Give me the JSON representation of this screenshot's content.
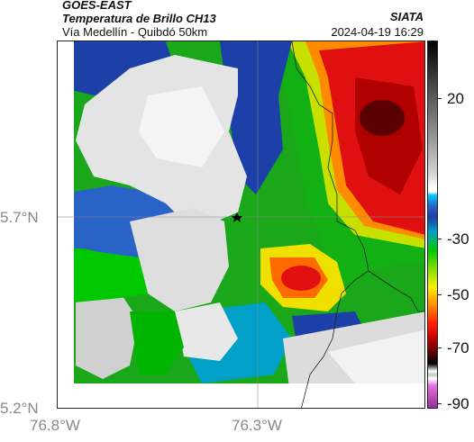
{
  "header": {
    "satellite": "GOES-EAST",
    "product": "Temperatura de Brillo CH13",
    "subtitle": "Vía Medellín - Quibdó 50km",
    "organization": "SIATA",
    "datetime": "2024-04-19 16:29"
  },
  "map": {
    "lat_labels": [
      "5.7°N",
      "5.2°N"
    ],
    "lon_labels": [
      "76.8°W",
      "76.3°W"
    ],
    "marker": "star-marker"
  },
  "colorbar": {
    "labels": [
      "20",
      "-30",
      "-50",
      "-70",
      "-90"
    ]
  },
  "colors": {
    "clear_sky": "#e6e6e6",
    "deep_blue": "#1d3fa8",
    "green": "#00c800",
    "red": "#e01010",
    "dark_red": "#700000"
  }
}
